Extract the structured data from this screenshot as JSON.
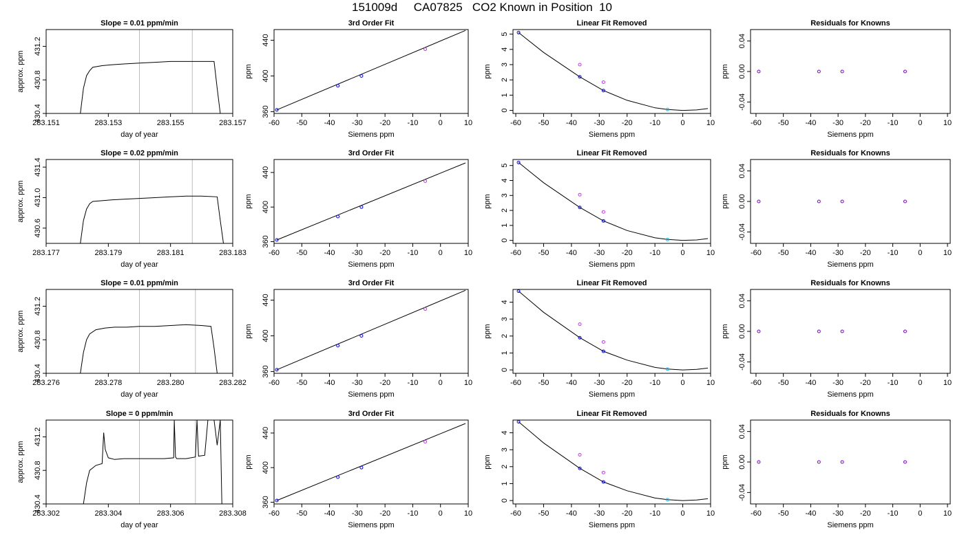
{
  "page_title": "151009d     CA07825   CO2 Known in Position  10",
  "colors": {
    "frame": "#000000",
    "vline": "#bdbdbd",
    "fit_point": "#0000ff",
    "removed_point": "#cc33ff",
    "cyan_point": "#00bfff",
    "residual_point": "#7a00cc"
  },
  "chart_data": [
    {
      "type": "line",
      "title": "Slope =  0.01  ppm/min",
      "xlabel": "day of year",
      "ylabel": "approx. ppm",
      "xlim": [
        283.151,
        283.157
      ],
      "ylim": [
        430.4,
        431.4
      ],
      "xticks": [
        "283.151",
        "283.153",
        "283.155",
        "283.157"
      ],
      "yticks": [
        "430.4",
        "430.8",
        "431.2"
      ],
      "vlines": [
        283.154,
        283.1557
      ],
      "series": [
        {
          "x": [
            283.1521,
            283.1522,
            283.1523,
            283.1524,
            283.1525,
            283.1528,
            283.1531,
            283.1535,
            283.154,
            283.1545,
            283.155,
            283.1555,
            283.156,
            283.1564,
            283.1565,
            283.1566
          ],
          "y": [
            430.4,
            430.7,
            430.85,
            430.91,
            430.95,
            430.97,
            430.98,
            430.99,
            431.0,
            431.01,
            431.02,
            431.02,
            431.02,
            431.02,
            430.7,
            430.4
          ]
        }
      ]
    },
    {
      "type": "scatter",
      "title": "3rd Order Fit",
      "xlabel": "Siemens ppm",
      "ylabel": "ppm",
      "xlim": [
        -60,
        10
      ],
      "ylim": [
        358,
        452
      ],
      "xticks": [
        "-60",
        "-50",
        "-40",
        "-30",
        "-20",
        "-10",
        "0",
        "10"
      ],
      "yticks": [
        "360",
        "400",
        "440"
      ],
      "curve": {
        "x": [
          -59,
          9
        ],
        "y": [
          362,
          451
        ]
      },
      "points": [
        {
          "x": -59,
          "y": 362,
          "c": "fit"
        },
        {
          "x": -37,
          "y": 389,
          "c": "fit"
        },
        {
          "x": -28.5,
          "y": 400,
          "c": "fit"
        },
        {
          "x": -5.5,
          "y": 430,
          "c": "removed"
        }
      ]
    },
    {
      "type": "scatter",
      "title": "Linear Fit Removed",
      "xlabel": "Siemens ppm",
      "ylabel": "ppm",
      "xlim": [
        -61,
        10
      ],
      "ylim": [
        -0.2,
        5.3
      ],
      "xticks": [
        "-60",
        "-50",
        "-40",
        "-30",
        "-20",
        "-10",
        "0",
        "10"
      ],
      "yticks": [
        "0",
        "1",
        "2",
        "3",
        "4",
        "5"
      ],
      "curve": {
        "x": [
          -59,
          -50,
          -37,
          -28.5,
          -20,
          -10,
          -5.5,
          0,
          5,
          9
        ],
        "y": [
          5.1,
          3.8,
          2.2,
          1.3,
          0.66,
          0.17,
          0.06,
          0.0,
          0.03,
          0.12
        ]
      },
      "points": [
        {
          "x": -59,
          "y": 5.1,
          "c": "fit"
        },
        {
          "x": -37,
          "y": 2.2,
          "c": "fit"
        },
        {
          "x": -28.5,
          "y": 1.3,
          "c": "fit"
        },
        {
          "x": -37,
          "y": 3.0,
          "c": "removed"
        },
        {
          "x": -28.5,
          "y": 1.85,
          "c": "removed"
        },
        {
          "x": -5.5,
          "y": 0.06,
          "c": "cyan"
        }
      ]
    },
    {
      "type": "scatter",
      "title": "Residuals for Knowns",
      "xlabel": "Siemens ppm",
      "ylabel": "ppm",
      "xlim": [
        -62,
        11
      ],
      "ylim": [
        -0.055,
        0.055
      ],
      "xticks": [
        "-60",
        "-50",
        "-40",
        "-30",
        "-20",
        "-10",
        "0",
        "10"
      ],
      "yticks": [
        "-0.04",
        "0.00",
        "0.04"
      ],
      "points": [
        {
          "x": -59,
          "y": 0,
          "c": "residual"
        },
        {
          "x": -37,
          "y": 0,
          "c": "residual"
        },
        {
          "x": -28.5,
          "y": 0,
          "c": "residual"
        },
        {
          "x": -5.5,
          "y": 0,
          "c": "residual"
        }
      ]
    },
    {
      "type": "line",
      "title": "Slope =  0.02  ppm/min",
      "xlabel": "day of year",
      "ylabel": "approx. ppm",
      "xlim": [
        283.177,
        283.183
      ],
      "ylim": [
        430.4,
        431.5
      ],
      "xticks": [
        "283.177",
        "283.179",
        "283.181",
        "283.183"
      ],
      "yticks": [
        "430.6",
        "431.0",
        "431.4"
      ],
      "vlines": [
        283.18,
        283.1817
      ],
      "series": [
        {
          "x": [
            283.1781,
            283.1782,
            283.1783,
            283.1784,
            283.1785,
            283.1788,
            283.1791,
            283.1795,
            283.18,
            283.1805,
            283.181,
            283.1815,
            283.182,
            283.1825,
            283.1826,
            283.1827
          ],
          "y": [
            430.4,
            430.7,
            430.85,
            430.92,
            430.95,
            430.96,
            430.97,
            430.98,
            430.99,
            431.0,
            431.01,
            431.02,
            431.02,
            431.01,
            430.7,
            430.4
          ]
        }
      ]
    },
    {
      "type": "scatter",
      "title": "3rd Order Fit",
      "xlabel": "Siemens ppm",
      "ylabel": "ppm",
      "xlim": [
        -60,
        10
      ],
      "ylim": [
        358,
        455
      ],
      "xticks": [
        "-60",
        "-50",
        "-40",
        "-30",
        "-20",
        "-10",
        "0",
        "10"
      ],
      "yticks": [
        "360",
        "400",
        "440"
      ],
      "curve": {
        "x": [
          -59,
          9
        ],
        "y": [
          362,
          451
        ]
      },
      "points": [
        {
          "x": -59,
          "y": 362,
          "c": "fit"
        },
        {
          "x": -37,
          "y": 389,
          "c": "fit"
        },
        {
          "x": -28.5,
          "y": 400,
          "c": "fit"
        },
        {
          "x": -5.5,
          "y": 430,
          "c": "removed"
        }
      ]
    },
    {
      "type": "scatter",
      "title": "Linear Fit Removed",
      "xlabel": "Siemens ppm",
      "ylabel": "ppm",
      "xlim": [
        -61,
        10
      ],
      "ylim": [
        -0.2,
        5.4
      ],
      "xticks": [
        "-60",
        "-50",
        "-40",
        "-30",
        "-20",
        "-10",
        "0",
        "10"
      ],
      "yticks": [
        "0",
        "1",
        "2",
        "3",
        "4",
        "5"
      ],
      "curve": {
        "x": [
          -59,
          -50,
          -37,
          -28.5,
          -20,
          -10,
          -5.5,
          0,
          5,
          9
        ],
        "y": [
          5.2,
          3.85,
          2.2,
          1.3,
          0.66,
          0.17,
          0.06,
          0.0,
          0.03,
          0.12
        ]
      },
      "points": [
        {
          "x": -59,
          "y": 5.2,
          "c": "fit"
        },
        {
          "x": -37,
          "y": 2.2,
          "c": "fit"
        },
        {
          "x": -28.5,
          "y": 1.3,
          "c": "fit"
        },
        {
          "x": -37,
          "y": 3.05,
          "c": "removed"
        },
        {
          "x": -28.5,
          "y": 1.9,
          "c": "removed"
        },
        {
          "x": -5.5,
          "y": 0.06,
          "c": "cyan"
        }
      ]
    },
    {
      "type": "scatter",
      "title": "Residuals for Knowns",
      "xlabel": "Siemens ppm",
      "ylabel": "ppm",
      "xlim": [
        -62,
        11
      ],
      "ylim": [
        -0.055,
        0.055
      ],
      "xticks": [
        "-60",
        "-50",
        "-40",
        "-30",
        "-20",
        "-10",
        "0",
        "10"
      ],
      "yticks": [
        "-0.04",
        "0.00",
        "0.04"
      ],
      "points": [
        {
          "x": -59,
          "y": 0,
          "c": "residual"
        },
        {
          "x": -37,
          "y": 0,
          "c": "residual"
        },
        {
          "x": -28.5,
          "y": 0,
          "c": "residual"
        },
        {
          "x": -5.5,
          "y": 0,
          "c": "residual"
        }
      ]
    },
    {
      "type": "line",
      "title": "Slope =  0.01  ppm/min",
      "xlabel": "day of year",
      "ylabel": "approx. ppm",
      "xlim": [
        283.276,
        283.282
      ],
      "ylim": [
        430.4,
        431.4
      ],
      "xticks": [
        "283.276",
        "283.278",
        "283.280",
        "283.282"
      ],
      "yticks": [
        "430.4",
        "430.8",
        "431.2"
      ],
      "vlines": [
        283.279,
        283.2808
      ],
      "series": [
        {
          "x": [
            283.2771,
            283.2772,
            283.2773,
            283.2774,
            283.2776,
            283.2779,
            283.2782,
            283.2786,
            283.279,
            283.2795,
            283.28,
            283.2805,
            283.281,
            283.2813,
            283.2814,
            283.2815
          ],
          "y": [
            430.4,
            430.65,
            430.8,
            430.87,
            430.92,
            430.94,
            430.95,
            430.95,
            430.96,
            430.96,
            430.97,
            430.98,
            430.97,
            430.96,
            430.7,
            430.4
          ]
        }
      ]
    },
    {
      "type": "scatter",
      "title": "3rd Order Fit",
      "xlabel": "Siemens ppm",
      "ylabel": "ppm",
      "xlim": [
        -60,
        10
      ],
      "ylim": [
        358,
        452
      ],
      "xticks": [
        "-60",
        "-50",
        "-40",
        "-30",
        "-20",
        "-10",
        "0",
        "10"
      ],
      "yticks": [
        "360",
        "400",
        "440"
      ],
      "curve": {
        "x": [
          -59,
          9
        ],
        "y": [
          362,
          451
        ]
      },
      "points": [
        {
          "x": -59,
          "y": 362,
          "c": "fit"
        },
        {
          "x": -37,
          "y": 389,
          "c": "fit"
        },
        {
          "x": -28.5,
          "y": 400,
          "c": "fit"
        },
        {
          "x": -5.5,
          "y": 430,
          "c": "removed"
        }
      ]
    },
    {
      "type": "scatter",
      "title": "Linear Fit Removed",
      "xlabel": "Siemens ppm",
      "ylabel": "ppm",
      "xlim": [
        -61,
        10
      ],
      "ylim": [
        -0.2,
        4.75
      ],
      "xticks": [
        "-60",
        "-50",
        "-40",
        "-30",
        "-20",
        "-10",
        "0",
        "10"
      ],
      "yticks": [
        "0",
        "1",
        "2",
        "3",
        "4"
      ],
      "curve": {
        "x": [
          -59,
          -50,
          -37,
          -28.5,
          -20,
          -10,
          -5.5,
          0,
          5,
          9
        ],
        "y": [
          4.65,
          3.4,
          1.9,
          1.1,
          0.58,
          0.15,
          0.05,
          0.0,
          0.03,
          0.11
        ]
      },
      "points": [
        {
          "x": -59,
          "y": 4.65,
          "c": "fit"
        },
        {
          "x": -37,
          "y": 1.9,
          "c": "fit"
        },
        {
          "x": -28.5,
          "y": 1.1,
          "c": "fit"
        },
        {
          "x": -37,
          "y": 2.7,
          "c": "removed"
        },
        {
          "x": -28.5,
          "y": 1.65,
          "c": "removed"
        },
        {
          "x": -5.5,
          "y": 0.05,
          "c": "cyan"
        }
      ]
    },
    {
      "type": "scatter",
      "title": "Residuals for Knowns",
      "xlabel": "Siemens ppm",
      "ylabel": "ppm",
      "xlim": [
        -62,
        11
      ],
      "ylim": [
        -0.055,
        0.055
      ],
      "xticks": [
        "-60",
        "-50",
        "-40",
        "-30",
        "-20",
        "-10",
        "0",
        "10"
      ],
      "yticks": [
        "-0.04",
        "0.00",
        "0.04"
      ],
      "points": [
        {
          "x": -59,
          "y": 0,
          "c": "residual"
        },
        {
          "x": -37,
          "y": 0,
          "c": "residual"
        },
        {
          "x": -28.5,
          "y": 0,
          "c": "residual"
        },
        {
          "x": -5.5,
          "y": 0,
          "c": "residual"
        }
      ]
    },
    {
      "type": "line",
      "title": "Slope =  0  ppm/min",
      "xlabel": "day of year",
      "ylabel": "approx. ppm",
      "xlim": [
        283.302,
        283.308
      ],
      "ylim": [
        430.4,
        431.4
      ],
      "xticks": [
        "283.302",
        "283.304",
        "283.306",
        "283.308"
      ],
      "yticks": [
        "430.4",
        "430.8",
        "431.2"
      ],
      "vlines": [
        283.305,
        283.3068
      ],
      "series": [
        {
          "x": [
            283.3032,
            283.3033,
            283.3034,
            283.3036,
            283.3038,
            283.30385,
            283.3039,
            283.304,
            283.3042,
            283.3045,
            283.305,
            283.3055,
            283.3058,
            283.3061,
            283.30612,
            283.30616,
            283.3062,
            283.3065,
            283.3068,
            283.30685,
            283.3069,
            283.3071,
            283.3072,
            283.3074,
            283.3075,
            283.3076,
            283.30765,
            283.3077
          ],
          "y": [
            430.4,
            430.65,
            430.8,
            430.86,
            430.88,
            431.25,
            431.05,
            430.95,
            430.93,
            430.94,
            430.94,
            430.94,
            430.94,
            430.95,
            431.4,
            430.96,
            430.94,
            430.94,
            430.96,
            431.4,
            430.97,
            430.98,
            431.4,
            431.4,
            431.1,
            431.4,
            430.4,
            430.4
          ]
        }
      ]
    },
    {
      "type": "scatter",
      "title": "3rd Order Fit",
      "xlabel": "Siemens ppm",
      "ylabel": "ppm",
      "xlim": [
        -60,
        10
      ],
      "ylim": [
        358,
        455
      ],
      "xticks": [
        "-60",
        "-50",
        "-40",
        "-30",
        "-20",
        "-10",
        "0",
        "10"
      ],
      "yticks": [
        "360",
        "400",
        "440"
      ],
      "curve": {
        "x": [
          -59,
          9
        ],
        "y": [
          362,
          451
        ]
      },
      "points": [
        {
          "x": -59,
          "y": 362,
          "c": "fit"
        },
        {
          "x": -37,
          "y": 389,
          "c": "fit"
        },
        {
          "x": -28.5,
          "y": 400,
          "c": "fit"
        },
        {
          "x": -5.5,
          "y": 430,
          "c": "removed"
        }
      ]
    },
    {
      "type": "scatter",
      "title": "Linear Fit Removed",
      "xlabel": "Siemens ppm",
      "ylabel": "ppm",
      "xlim": [
        -61,
        10
      ],
      "ylim": [
        -0.2,
        4.75
      ],
      "xticks": [
        "-60",
        "-50",
        "-40",
        "-30",
        "-20",
        "-10",
        "0",
        "10"
      ],
      "yticks": [
        "0",
        "1",
        "2",
        "3",
        "4"
      ],
      "curve": {
        "x": [
          -59,
          -50,
          -37,
          -28.5,
          -20,
          -10,
          -5.5,
          0,
          5,
          9
        ],
        "y": [
          4.65,
          3.4,
          1.9,
          1.1,
          0.58,
          0.15,
          0.05,
          0.0,
          0.03,
          0.11
        ]
      },
      "points": [
        {
          "x": -59,
          "y": 4.65,
          "c": "fit"
        },
        {
          "x": -37,
          "y": 1.9,
          "c": "fit"
        },
        {
          "x": -28.5,
          "y": 1.1,
          "c": "fit"
        },
        {
          "x": -37,
          "y": 2.7,
          "c": "removed"
        },
        {
          "x": -28.5,
          "y": 1.65,
          "c": "removed"
        },
        {
          "x": -5.5,
          "y": 0.05,
          "c": "cyan"
        }
      ]
    },
    {
      "type": "scatter",
      "title": "Residuals for Knowns",
      "xlabel": "Siemens ppm",
      "ylabel": "ppm",
      "xlim": [
        -62,
        11
      ],
      "ylim": [
        -0.055,
        0.055
      ],
      "xticks": [
        "-60",
        "-50",
        "-40",
        "-30",
        "-20",
        "-10",
        "0",
        "10"
      ],
      "yticks": [
        "-0.04",
        "0.00",
        "0.04"
      ],
      "points": [
        {
          "x": -59,
          "y": 0,
          "c": "residual"
        },
        {
          "x": -37,
          "y": 0,
          "c": "residual"
        },
        {
          "x": -28.5,
          "y": 0,
          "c": "residual"
        },
        {
          "x": -5.5,
          "y": 0,
          "c": "residual"
        }
      ]
    }
  ]
}
